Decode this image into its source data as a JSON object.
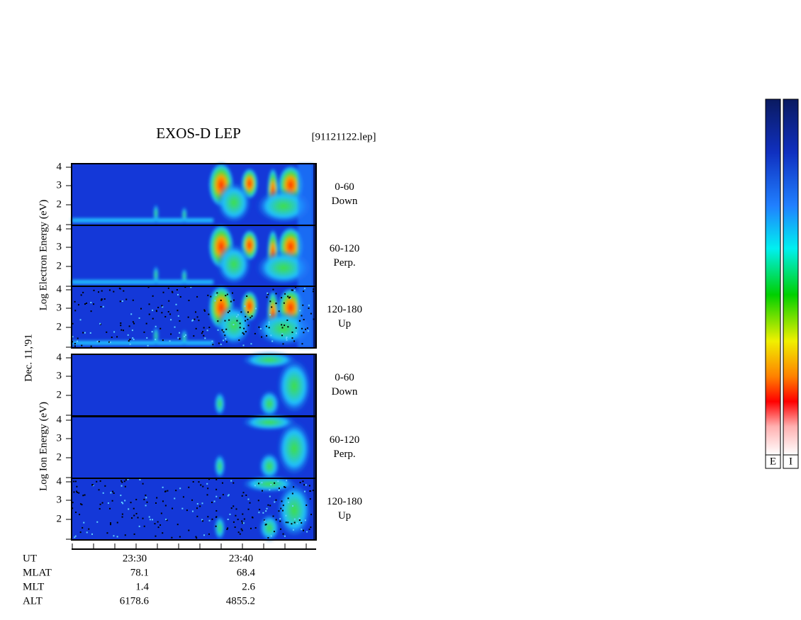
{
  "title": "EXOS-D LEP",
  "file": "[91121122.lep]",
  "electron_axis_label": "Log  Electron  Energy (eV)",
  "date": "Dec. 11,'91",
  "ion_axis_label": "Log  Ion  Energy (eV)",
  "panels": [
    {
      "yticks": [
        4,
        3,
        2
      ],
      "channel": "0-60",
      "direction": "Down"
    },
    {
      "yticks": [
        4,
        3,
        2
      ],
      "channel": "60-120",
      "direction": "Perp."
    },
    {
      "yticks": [
        4,
        3,
        2
      ],
      "channel": "120-180",
      "direction": "Up"
    },
    {
      "yticks": [
        4,
        3,
        2
      ],
      "channel": "0-60",
      "direction": "Down"
    },
    {
      "yticks": [
        4,
        3,
        2
      ],
      "channel": "60-120",
      "direction": "Perp."
    },
    {
      "yticks": [
        4,
        3,
        2
      ],
      "channel": "120-180",
      "direction": "Up"
    }
  ],
  "footer": {
    "rows": [
      {
        "name": "UT",
        "values": [
          "23:30",
          "23:40"
        ]
      },
      {
        "name": "MLAT",
        "values": [
          "78.1",
          "68.4"
        ]
      },
      {
        "name": "MLT",
        "values": [
          "1.4",
          "2.6"
        ]
      },
      {
        "name": "ALT",
        "values": [
          "6178.6",
          "4855.2"
        ]
      }
    ]
  },
  "colorbar_labels": [
    "E",
    "I"
  ]
}
